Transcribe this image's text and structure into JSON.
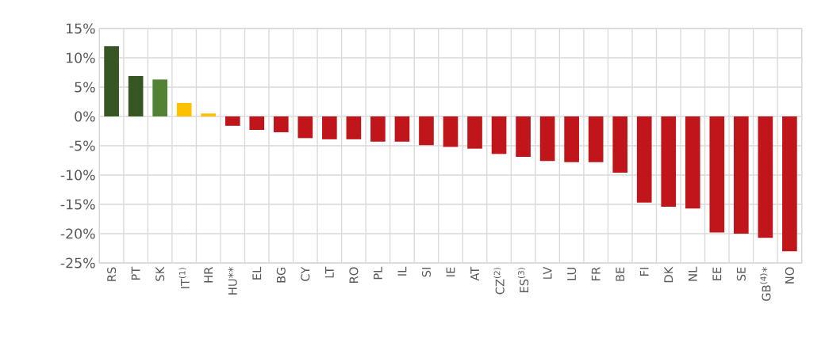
{
  "chart_data": {
    "type": "bar",
    "categories": [
      "RS",
      "PT",
      "SK",
      "IT$^{(1)}$",
      "HR",
      "HU**",
      "EL",
      "BG",
      "CY",
      "LT",
      "RO",
      "PL",
      "IL",
      "SI",
      "IE",
      "AT",
      "CZ$^{(2)}$",
      "ES$^{(3)}$",
      "LV",
      "LU",
      "FR",
      "BE",
      "FI",
      "DK",
      "NL",
      "EE",
      "SE",
      "GB$^{(4)}$*",
      "NO"
    ],
    "values": [
      12.0,
      6.9,
      6.3,
      2.3,
      0.5,
      -1.6,
      -2.3,
      -2.7,
      -3.7,
      -3.9,
      -3.9,
      -4.3,
      -4.3,
      -4.9,
      -5.2,
      -5.5,
      -6.4,
      -6.9,
      -7.6,
      -7.8,
      -7.8,
      -9.6,
      -14.7,
      -15.4,
      -15.7,
      -19.8,
      -20.0,
      -20.7,
      -23.0
    ],
    "colors": [
      "#375623",
      "#375623",
      "#548235",
      "#ffc000",
      "#ffc000",
      "#c0161b",
      "#c0161b",
      "#c0161b",
      "#c0161b",
      "#c0161b",
      "#c0161b",
      "#c0161b",
      "#c0161b",
      "#c0161b",
      "#c0161b",
      "#c0161b",
      "#c0161b",
      "#c0161b",
      "#c0161b",
      "#c0161b",
      "#c0161b",
      "#c0161b",
      "#c0161b",
      "#c0161b",
      "#c0161b",
      "#c0161b",
      "#c0161b",
      "#c0161b",
      "#c0161b"
    ],
    "ylim": [
      -25,
      15
    ],
    "yticks": [
      {
        "value": -25,
        "label": "-25%"
      },
      {
        "value": -20,
        "label": "-20%"
      },
      {
        "value": -15,
        "label": "-15%"
      },
      {
        "value": -10,
        "label": "-10%"
      },
      {
        "value": -5,
        "label": "-5%"
      },
      {
        "value": 0,
        "label": "0%"
      },
      {
        "value": 5,
        "label": "5%"
      },
      {
        "value": 10,
        "label": "10%"
      },
      {
        "value": 15,
        "label": "15%"
      }
    ],
    "grid": true
  }
}
